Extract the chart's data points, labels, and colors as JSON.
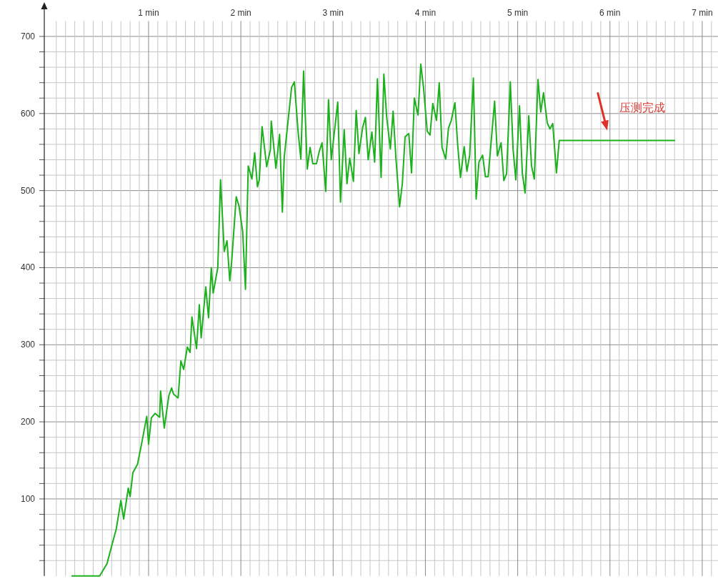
{
  "chart_data": {
    "type": "line",
    "color": "#1cb11c",
    "grid": true,
    "xlim": [
      -0.13,
      7.17
    ],
    "ylim": [
      0,
      720
    ],
    "xticks": [
      {
        "value": 0,
        "label": null
      },
      {
        "value": 0.1,
        "label": null
      },
      {
        "value": 0.2,
        "label": null
      },
      {
        "value": 0.3,
        "label": null
      },
      {
        "value": 0.4,
        "label": null
      },
      {
        "value": 0.5,
        "label": null
      },
      {
        "value": 0.6,
        "label": null
      },
      {
        "value": 0.7,
        "label": null
      },
      {
        "value": 0.8,
        "label": null
      },
      {
        "value": 0.9,
        "label": null
      },
      {
        "value": 1,
        "label": "1 min"
      },
      {
        "value": 1.1,
        "label": null
      },
      {
        "value": 1.2,
        "label": null
      },
      {
        "value": 1.3,
        "label": null
      },
      {
        "value": 1.4,
        "label": null
      },
      {
        "value": 1.5,
        "label": null
      },
      {
        "value": 1.6,
        "label": null
      },
      {
        "value": 1.7,
        "label": null
      },
      {
        "value": 1.8,
        "label": null
      },
      {
        "value": 1.9,
        "label": null
      },
      {
        "value": 2,
        "label": "2 min"
      },
      {
        "value": 2.1,
        "label": null
      },
      {
        "value": 2.2,
        "label": null
      },
      {
        "value": 2.3,
        "label": null
      },
      {
        "value": 2.4,
        "label": null
      },
      {
        "value": 2.5,
        "label": null
      },
      {
        "value": 2.6,
        "label": null
      },
      {
        "value": 2.7,
        "label": null
      },
      {
        "value": 2.8,
        "label": null
      },
      {
        "value": 2.9,
        "label": null
      },
      {
        "value": 3,
        "label": "3 min"
      },
      {
        "value": 3.1,
        "label": null
      },
      {
        "value": 3.2,
        "label": null
      },
      {
        "value": 3.3,
        "label": null
      },
      {
        "value": 3.4,
        "label": null
      },
      {
        "value": 3.5,
        "label": null
      },
      {
        "value": 3.6,
        "label": null
      },
      {
        "value": 3.7,
        "label": null
      },
      {
        "value": 3.8,
        "label": null
      },
      {
        "value": 3.9,
        "label": null
      },
      {
        "value": 4,
        "label": "4 min"
      },
      {
        "value": 4.1,
        "label": null
      },
      {
        "value": 4.2,
        "label": null
      },
      {
        "value": 4.3,
        "label": null
      },
      {
        "value": 4.4,
        "label": null
      },
      {
        "value": 4.5,
        "label": null
      },
      {
        "value": 4.6,
        "label": null
      },
      {
        "value": 4.7,
        "label": null
      },
      {
        "value": 4.8,
        "label": null
      },
      {
        "value": 4.9,
        "label": null
      },
      {
        "value": 5,
        "label": "5 min"
      },
      {
        "value": 5.1,
        "label": null
      },
      {
        "value": 5.2,
        "label": null
      },
      {
        "value": 5.3,
        "label": null
      },
      {
        "value": 5.4,
        "label": null
      },
      {
        "value": 5.5,
        "label": null
      },
      {
        "value": 5.6,
        "label": null
      },
      {
        "value": 5.7,
        "label": null
      },
      {
        "value": 5.8,
        "label": null
      },
      {
        "value": 5.9,
        "label": null
      },
      {
        "value": 6,
        "label": "6 min"
      },
      {
        "value": 6.1,
        "label": null
      },
      {
        "value": 6.2,
        "label": null
      },
      {
        "value": 6.3,
        "label": null
      },
      {
        "value": 6.4,
        "label": null
      },
      {
        "value": 6.5,
        "label": null
      },
      {
        "value": 6.6,
        "label": null
      },
      {
        "value": 6.7,
        "label": null
      },
      {
        "value": 6.8,
        "label": null
      },
      {
        "value": 6.9,
        "label": null
      },
      {
        "value": 7,
        "label": "7 min"
      },
      {
        "value": 7.1,
        "label": null
      }
    ],
    "yticks": [
      {
        "value": 20,
        "label": null
      },
      {
        "value": 40,
        "label": null
      },
      {
        "value": 60,
        "label": null
      },
      {
        "value": 80,
        "label": null
      },
      100,
      {
        "value": 120,
        "label": null
      },
      {
        "value": 140,
        "label": null
      },
      {
        "value": 160,
        "label": null
      },
      {
        "value": 180,
        "label": null
      },
      200,
      {
        "value": 220,
        "label": null
      },
      {
        "value": 240,
        "label": null
      },
      {
        "value": 260,
        "label": null
      },
      {
        "value": 280,
        "label": null
      },
      300,
      {
        "value": 320,
        "label": null
      },
      {
        "value": 340,
        "label": null
      },
      {
        "value": 360,
        "label": null
      },
      {
        "value": 380,
        "label": null
      },
      400,
      {
        "value": 420,
        "label": null
      },
      {
        "value": 440,
        "label": null
      },
      {
        "value": 460,
        "label": null
      },
      {
        "value": 480,
        "label": null
      },
      500,
      {
        "value": 520,
        "label": null
      },
      {
        "value": 540,
        "label": null
      },
      {
        "value": 560,
        "label": null
      },
      {
        "value": 580,
        "label": null
      },
      600,
      {
        "value": 620,
        "label": null
      },
      {
        "value": 640,
        "label": null
      },
      {
        "value": 660,
        "label": null
      },
      {
        "value": 680,
        "label": null
      },
      700
    ],
    "x": [
      0.17,
      0.47,
      0.5,
      0.55,
      0.6,
      0.65,
      0.7,
      0.73,
      0.78,
      0.8,
      0.83,
      0.88,
      0.93,
      0.98,
      1.0,
      1.03,
      1.07,
      1.12,
      1.13,
      1.17,
      1.22,
      1.25,
      1.27,
      1.32,
      1.35,
      1.38,
      1.42,
      1.45,
      1.47,
      1.52,
      1.55,
      1.57,
      1.62,
      1.65,
      1.68,
      1.7,
      1.75,
      1.78,
      1.82,
      1.85,
      1.88,
      1.9,
      1.95,
      1.98,
      2.02,
      2.05,
      2.08,
      2.12,
      2.15,
      2.18,
      2.2,
      2.23,
      2.28,
      2.32,
      2.33,
      2.38,
      2.42,
      2.45,
      2.47,
      2.52,
      2.55,
      2.58,
      2.62,
      2.65,
      2.68,
      2.72,
      2.75,
      2.78,
      2.82,
      2.85,
      2.88,
      2.92,
      2.95,
      2.98,
      3.05,
      3.08,
      3.12,
      3.15,
      3.18,
      3.22,
      3.25,
      3.28,
      3.32,
      3.35,
      3.38,
      3.42,
      3.45,
      3.48,
      3.52,
      3.55,
      3.58,
      3.62,
      3.65,
      3.68,
      3.72,
      3.75,
      3.78,
      3.82,
      3.85,
      3.88,
      3.92,
      3.95,
      3.98,
      4.02,
      4.05,
      4.08,
      4.12,
      4.15,
      4.18,
      4.22,
      4.25,
      4.28,
      4.32,
      4.35,
      4.38,
      4.42,
      4.45,
      4.48,
      4.52,
      4.55,
      4.58,
      4.62,
      4.65,
      4.68,
      4.75,
      4.78,
      4.82,
      4.85,
      4.88,
      4.92,
      4.95,
      4.98,
      5.02,
      5.05,
      5.08,
      5.12,
      5.15,
      5.18,
      5.22,
      5.25,
      5.28,
      5.32,
      5.35,
      5.38,
      5.42,
      5.45,
      6.7
    ],
    "values": [
      0,
      0,
      6,
      16,
      39,
      61,
      98,
      74,
      114,
      103,
      134,
      145,
      175,
      207,
      171,
      205,
      211,
      206,
      240,
      192,
      234,
      244,
      236,
      231,
      279,
      268,
      297,
      290,
      336,
      295,
      352,
      309,
      375,
      335,
      400,
      367,
      400,
      514,
      421,
      435,
      383,
      407,
      492,
      480,
      447,
      372,
      532,
      515,
      549,
      505,
      514,
      583,
      531,
      553,
      590,
      529,
      573,
      472,
      543,
      600,
      634,
      641,
      577,
      541,
      655,
      528,
      556,
      535,
      535,
      551,
      562,
      499,
      618,
      540,
      615,
      485,
      579,
      509,
      542,
      512,
      604,
      548,
      582,
      595,
      540,
      576,
      537,
      645,
      517,
      651,
      596,
      554,
      603,
      543,
      479,
      509,
      570,
      574,
      523,
      620,
      598,
      664,
      633,
      577,
      572,
      613,
      591,
      640,
      556,
      541,
      581,
      591,
      614,
      559,
      517,
      557,
      525,
      546,
      646,
      489,
      537,
      546,
      518,
      518,
      616,
      545,
      562,
      513,
      522,
      641,
      554,
      514,
      610,
      523,
      497,
      597,
      532,
      515,
      644,
      602,
      627,
      588,
      580,
      587,
      523,
      565,
      565
    ],
    "annotations": [
      {
        "text": "压测完成",
        "x": 5.97,
        "y": 565
      }
    ]
  }
}
